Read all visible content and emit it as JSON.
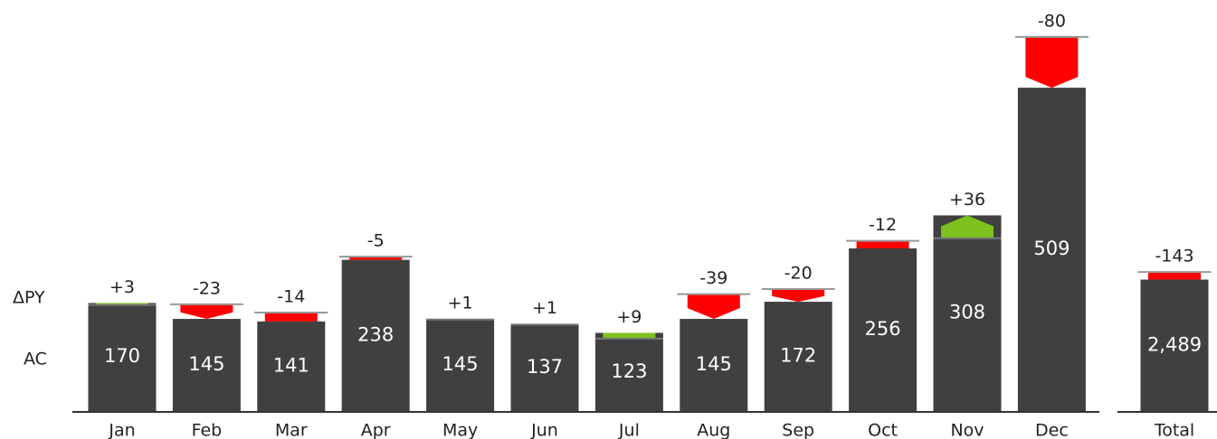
{
  "chart_data": [
    {
      "type": "variance-bar",
      "row_labels": [
        "ΔPY",
        "AC"
      ],
      "categories": [
        "Jan",
        "Feb",
        "Mar",
        "Apr",
        "May",
        "Jun",
        "Jul",
        "Aug",
        "Sep",
        "Oct",
        "Nov",
        "Dec"
      ],
      "series": [
        {
          "name": "AC",
          "color": "#404040",
          "values": [
            170,
            145,
            141,
            238,
            145,
            137,
            123,
            145,
            172,
            256,
            308,
            509
          ]
        },
        {
          "name": "ΔPY",
          "values": [
            3,
            -23,
            -14,
            -5,
            1,
            1,
            9,
            -39,
            -20,
            -12,
            36,
            -80
          ],
          "value_labels": [
            "+3",
            "-23",
            "-14",
            "-5",
            "+1",
            "+1",
            "+9",
            "-39",
            "-20",
            "-12",
            "+36",
            "-80"
          ]
        }
      ],
      "positive_color": "#7cc11c",
      "negative_color": "#ff0000",
      "ylim": [
        0,
        640
      ]
    },
    {
      "type": "variance-bar",
      "categories": [
        "Total"
      ],
      "series": [
        {
          "name": "AC",
          "color": "#404040",
          "values": [
            2489
          ],
          "value_labels": [
            "2,489"
          ]
        },
        {
          "name": "ΔPY",
          "values": [
            -143
          ],
          "value_labels": [
            "-143"
          ]
        }
      ],
      "positive_color": "#7cc11c",
      "negative_color": "#ff0000",
      "ylim": [
        0,
        7700
      ]
    }
  ]
}
